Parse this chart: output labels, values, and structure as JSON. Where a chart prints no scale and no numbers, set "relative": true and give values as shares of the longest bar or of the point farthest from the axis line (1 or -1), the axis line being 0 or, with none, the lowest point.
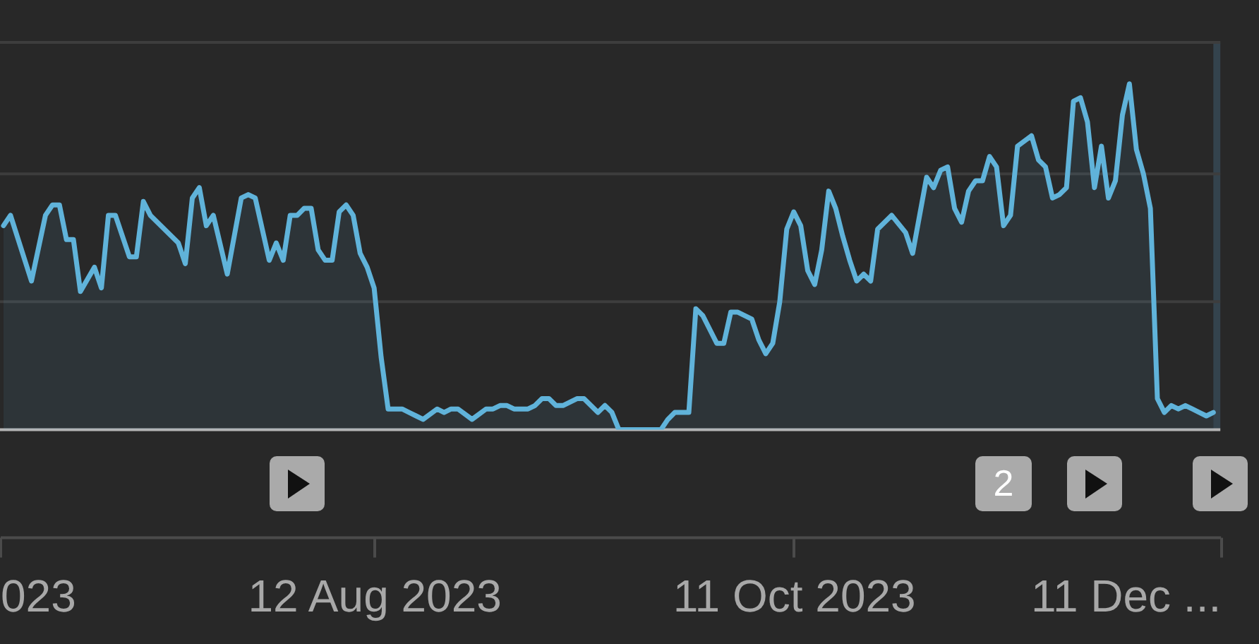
{
  "chart_data": {
    "type": "area",
    "relative": true,
    "xlim": [
      "2023-06-19T12:00",
      "2023-12-11"
    ],
    "xticks": [
      {
        "value": "2023-06-19T12:00",
        "label": "023"
      },
      {
        "value": "2023-08-12",
        "label": "12 Aug 2023"
      },
      {
        "value": "2023-10-11",
        "label": "11 Oct 2023"
      },
      {
        "value": "2023-12-11",
        "label": "11 Dec ..."
      }
    ],
    "x": [
      "2023-06-20",
      "2023-06-21",
      "2023-06-24",
      "2023-06-26",
      "2023-06-27",
      "2023-06-28",
      "2023-06-29",
      "2023-06-30",
      "2023-07-01",
      "2023-07-03",
      "2023-07-04",
      "2023-07-05",
      "2023-07-06",
      "2023-07-08",
      "2023-07-09",
      "2023-07-10",
      "2023-07-11",
      "2023-07-15",
      "2023-07-16",
      "2023-07-17",
      "2023-07-18",
      "2023-07-19",
      "2023-07-20",
      "2023-07-22",
      "2023-07-24",
      "2023-07-25",
      "2023-07-26",
      "2023-07-28",
      "2023-07-29",
      "2023-07-30",
      "2023-07-31",
      "2023-08-01",
      "2023-08-02",
      "2023-08-03",
      "2023-08-04",
      "2023-08-05",
      "2023-08-06",
      "2023-08-07",
      "2023-08-08",
      "2023-08-09",
      "2023-08-10",
      "2023-08-11",
      "2023-08-12",
      "2023-08-13",
      "2023-08-14",
      "2023-08-15",
      "2023-08-16",
      "2023-08-17",
      "2023-08-18",
      "2023-08-19",
      "2023-08-21",
      "2023-08-22",
      "2023-08-23",
      "2023-08-24",
      "2023-08-26",
      "2023-08-28",
      "2023-08-29",
      "2023-08-30",
      "2023-08-31",
      "2023-09-01",
      "2023-09-03",
      "2023-09-04",
      "2023-09-05",
      "2023-09-06",
      "2023-09-07",
      "2023-09-08",
      "2023-09-10",
      "2023-09-11",
      "2023-09-12",
      "2023-09-13",
      "2023-09-14",
      "2023-09-15",
      "2023-09-16",
      "2023-09-22",
      "2023-09-23",
      "2023-09-24",
      "2023-09-26",
      "2023-09-27",
      "2023-09-28",
      "2023-09-30",
      "2023-10-01",
      "2023-10-02",
      "2023-10-03",
      "2023-10-05",
      "2023-10-06",
      "2023-10-07",
      "2023-10-08",
      "2023-10-09",
      "2023-10-10",
      "2023-10-11",
      "2023-10-12",
      "2023-10-13",
      "2023-10-14",
      "2023-10-15",
      "2023-10-16",
      "2023-10-17",
      "2023-10-18",
      "2023-10-19",
      "2023-10-20",
      "2023-10-21",
      "2023-10-22",
      "2023-10-23",
      "2023-10-24",
      "2023-10-25",
      "2023-10-27",
      "2023-10-28",
      "2023-10-30",
      "2023-10-31",
      "2023-11-01",
      "2023-11-02",
      "2023-11-03",
      "2023-11-04",
      "2023-11-05",
      "2023-11-06",
      "2023-11-07",
      "2023-11-08",
      "2023-11-09",
      "2023-11-10",
      "2023-11-11",
      "2023-11-12",
      "2023-11-14",
      "2023-11-15",
      "2023-11-16",
      "2023-11-17",
      "2023-11-18",
      "2023-11-19",
      "2023-11-20",
      "2023-11-21",
      "2023-11-22",
      "2023-11-23",
      "2023-11-24",
      "2023-11-25",
      "2023-11-26",
      "2023-11-27",
      "2023-11-28",
      "2023-11-29",
      "2023-11-30",
      "2023-12-01",
      "2023-12-02",
      "2023-12-03",
      "2023-12-04",
      "2023-12-05",
      "2023-12-06",
      "2023-12-07",
      "2023-12-08",
      "2023-12-09",
      "2023-12-10"
    ],
    "series": [
      {
        "color": "#60b3da",
        "values": [
          0.59,
          0.62,
          0.43,
          0.62,
          0.65,
          0.65,
          0.55,
          0.55,
          0.4,
          0.47,
          0.41,
          0.62,
          0.62,
          0.5,
          0.5,
          0.66,
          0.62,
          0.54,
          0.48,
          0.67,
          0.7,
          0.59,
          0.62,
          0.45,
          0.67,
          0.68,
          0.67,
          0.49,
          0.54,
          0.49,
          0.62,
          0.62,
          0.64,
          0.64,
          0.52,
          0.49,
          0.49,
          0.63,
          0.65,
          0.62,
          0.51,
          0.47,
          0.41,
          0.21,
          0.06,
          0.06,
          0.06,
          0.05,
          0.04,
          0.03,
          0.06,
          0.05,
          0.06,
          0.06,
          0.03,
          0.06,
          0.06,
          0.07,
          0.07,
          0.06,
          0.06,
          0.07,
          0.09,
          0.09,
          0.07,
          0.07,
          0.09,
          0.09,
          0.07,
          0.05,
          0.07,
          0.05,
          0,
          0,
          0.03,
          0.05,
          0.05,
          0.35,
          0.33,
          0.25,
          0.25,
          0.34,
          0.34,
          0.32,
          0.26,
          0.22,
          0.25,
          0.37,
          0.58,
          0.63,
          0.59,
          0.46,
          0.42,
          0.52,
          0.69,
          0.64,
          0.56,
          0.49,
          0.43,
          0.45,
          0.43,
          0.58,
          0.6,
          0.62,
          0.57,
          0.51,
          0.73,
          0.7,
          0.75,
          0.76,
          0.64,
          0.6,
          0.69,
          0.72,
          0.72,
          0.79,
          0.76,
          0.59,
          0.62,
          0.82,
          0.85,
          0.78,
          0.76,
          0.67,
          0.68,
          0.7,
          0.95,
          0.96,
          0.89,
          0.7,
          0.82,
          0.67,
          0.72,
          0.91,
          1,
          0.81,
          0.74,
          0.64,
          0.09,
          0.05,
          0.07,
          0.06,
          0.07,
          0.06,
          0.05,
          0.04,
          0.05
        ]
      }
    ],
    "ref_lines": [
      {
        "axis": "y",
        "value": 0.37,
        "color": "#3d3d3d"
      },
      {
        "axis": "y",
        "value": 0.74,
        "color": "#3d3d3d"
      },
      {
        "axis": "y",
        "value": 1.12,
        "color": "#3d3d3d"
      }
    ],
    "bands": [
      {
        "axis": "x",
        "from": "2023-12-10",
        "to": "2023-12-11",
        "color": "#34434d"
      }
    ],
    "annotations": [
      "2"
    ]
  }
}
